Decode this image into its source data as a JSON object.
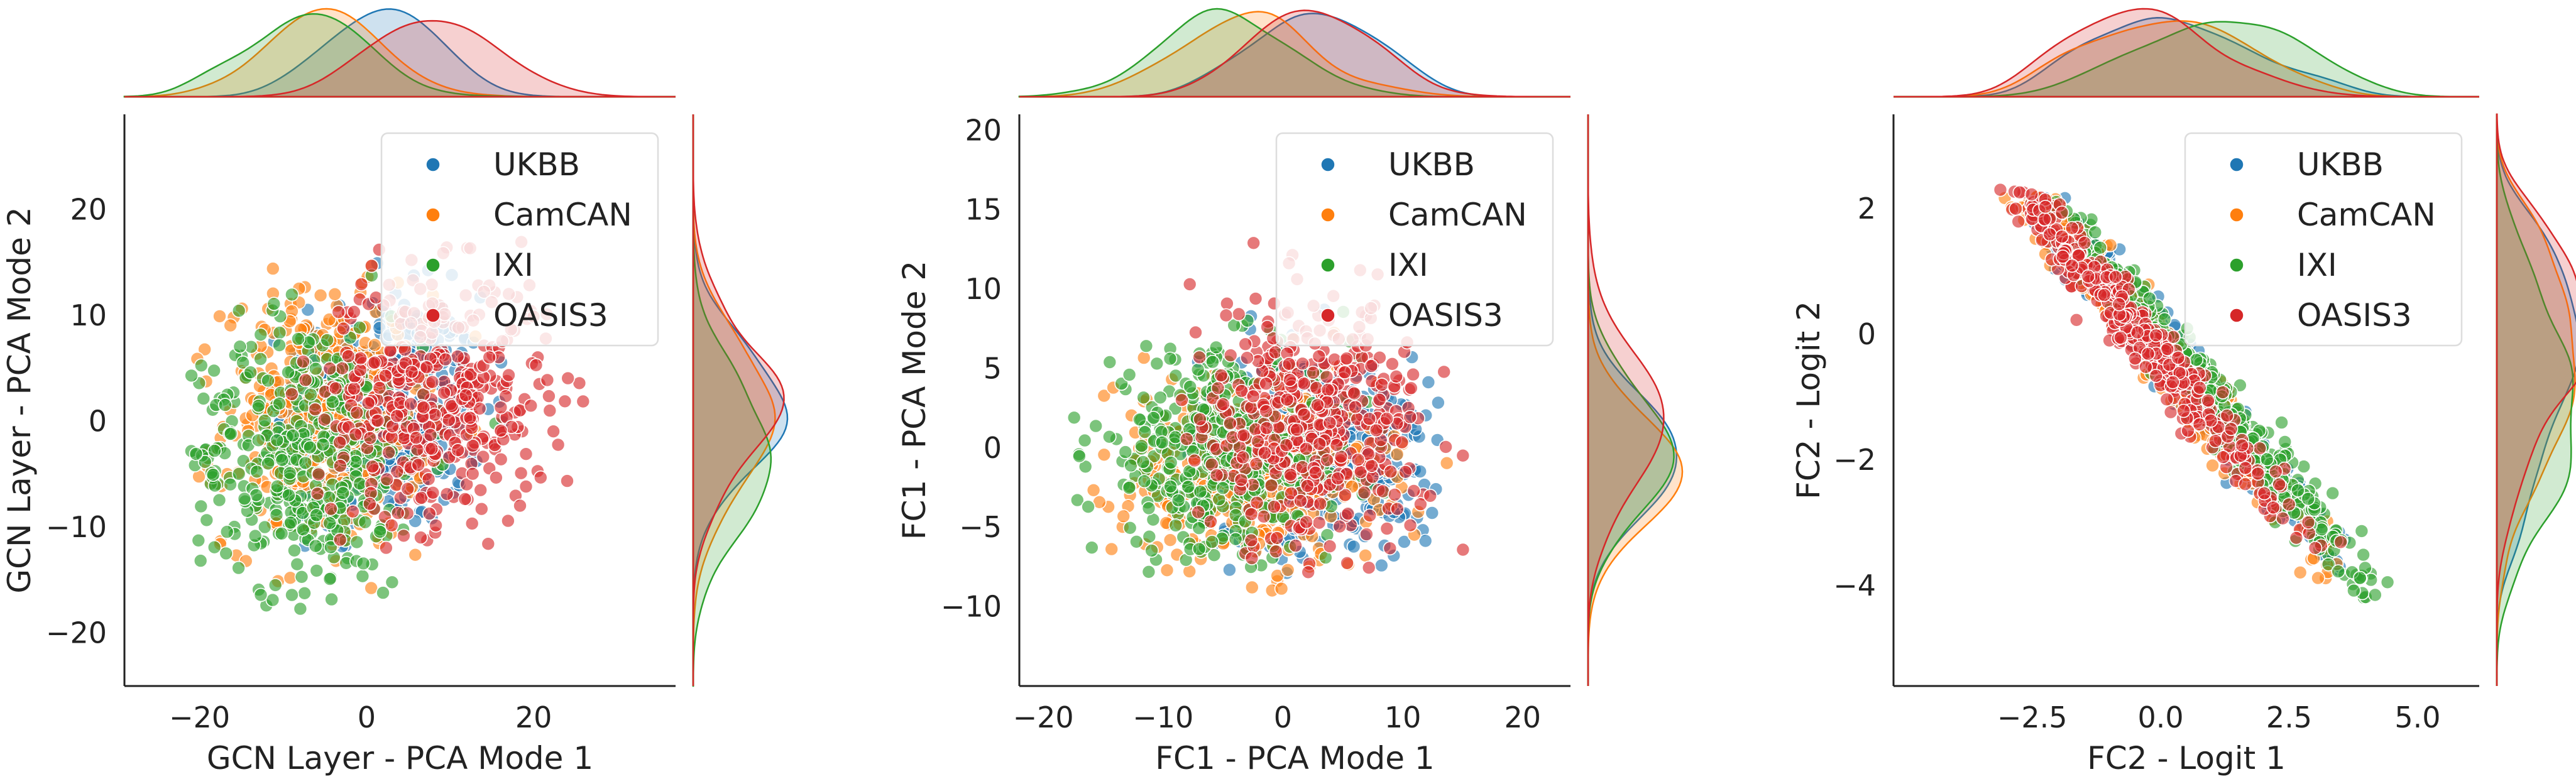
{
  "colors": {
    "UKBB": "#1f77b4",
    "CamCAN": "#ff7f0e",
    "IXI": "#2ca02c",
    "OASIS3": "#d62728",
    "axis": "#222222",
    "overlap_fill": "#8a7d5a"
  },
  "legend_entries": [
    "UKBB",
    "CamCAN",
    "IXI",
    "OASIS3"
  ],
  "chart_data": [
    {
      "type": "scatter",
      "subtype": "joint-plot with marginal KDE",
      "xlabel": "GCN Layer - PCA Mode 1",
      "ylabel": "GCN Layer - PCA Mode 2",
      "xlim": [
        -29,
        37
      ],
      "ylim": [
        -25,
        29
      ],
      "xticks": [
        -20,
        0,
        20
      ],
      "yticks": [
        -20,
        -10,
        0,
        10,
        20
      ],
      "legend": "upper right",
      "series": [
        {
          "name": "UKBB",
          "center": [
            2,
            1
          ],
          "spread": [
            6,
            5.5
          ],
          "corr": 0,
          "count": 420,
          "range": [
            [
              -12,
              18
            ],
            [
              -12,
              17
            ]
          ]
        },
        {
          "name": "CamCAN",
          "center": [
            -5,
            0
          ],
          "spread": [
            6,
            6
          ],
          "corr": 0,
          "count": 420,
          "range": [
            [
              -22,
              18
            ],
            [
              -16,
              17
            ]
          ]
        },
        {
          "name": "IXI",
          "center": [
            -7,
            -3
          ],
          "spread": [
            7,
            6.5
          ],
          "corr": 0,
          "count": 420,
          "range": [
            [
              -21,
              16
            ],
            [
              -18,
              14
            ]
          ]
        },
        {
          "name": "OASIS3",
          "center": [
            8,
            2
          ],
          "spread": [
            7,
            6
          ],
          "corr": 0,
          "count": 420,
          "range": [
            [
              -12,
              28
            ],
            [
              -12,
              17
            ]
          ]
        }
      ]
    },
    {
      "type": "scatter",
      "subtype": "joint-plot with marginal KDE",
      "xlabel": "FC1 - PCA Mode 1",
      "ylabel": "FC1 - PCA Mode 2",
      "xlim": [
        -22,
        24
      ],
      "ylim": [
        -15,
        21
      ],
      "xticks": [
        -20,
        -10,
        0,
        10,
        20
      ],
      "yticks": [
        -10,
        -5,
        0,
        5,
        10,
        15,
        20
      ],
      "legend": "upper right",
      "series": [
        {
          "name": "UKBB",
          "center": [
            3,
            -0.5
          ],
          "spread": [
            5,
            3.2
          ],
          "corr": 0,
          "count": 420,
          "range": [
            [
              -10,
              14
            ],
            [
              -8,
              9
            ]
          ]
        },
        {
          "name": "CamCAN",
          "center": [
            -3,
            -1.5
          ],
          "spread": [
            5.5,
            3
          ],
          "corr": 0,
          "count": 420,
          "range": [
            [
              -16,
              15
            ],
            [
              -9,
              12
            ]
          ]
        },
        {
          "name": "IXI",
          "center": [
            -5,
            -0.5
          ],
          "spread": [
            5.5,
            3.2
          ],
          "corr": 0,
          "count": 420,
          "range": [
            [
              -18,
              14
            ],
            [
              -9,
              9
            ]
          ]
        },
        {
          "name": "OASIS3",
          "center": [
            2,
            1.5
          ],
          "spread": [
            5,
            3.8
          ],
          "corr": 0,
          "count": 420,
          "range": [
            [
              -9,
              18
            ],
            [
              -8,
              17
            ]
          ]
        }
      ]
    },
    {
      "type": "scatter",
      "subtype": "joint-plot with marginal KDE",
      "xlabel": "FC2 - Logit 1",
      "ylabel": "FC2 - Logit 2",
      "xlim": [
        -5.2,
        6.2
      ],
      "ylim": [
        -5.6,
        3.5
      ],
      "xticks": [
        -2.5,
        0.0,
        2.5,
        5.0
      ],
      "xtick_labels": [
        "−2.5",
        "0.0",
        "2.5",
        "5.0"
      ],
      "yticks": [
        -4,
        -2,
        0,
        2
      ],
      "legend": "upper right",
      "series": [
        {
          "name": "UKBB",
          "center": [
            0.2,
            -0.4
          ],
          "spread": [
            1.6,
            0.28
          ],
          "slope": -0.98,
          "count": 420,
          "range": [
            [
              -3.6,
              4.0
            ],
            [
              -3.8,
              2.3
            ]
          ]
        },
        {
          "name": "CamCAN",
          "center": [
            0.0,
            -0.3
          ],
          "spread": [
            1.7,
            0.28
          ],
          "slope": -0.98,
          "count": 420,
          "range": [
            [
              -3.6,
              4.2
            ],
            [
              -3.9,
              2.3
            ]
          ]
        },
        {
          "name": "IXI",
          "center": [
            1.2,
            -1.2
          ],
          "spread": [
            1.6,
            0.28
          ],
          "slope": -0.98,
          "count": 420,
          "range": [
            [
              -3.4,
              4.6
            ],
            [
              -4.2,
              2.2
            ]
          ]
        },
        {
          "name": "OASIS3",
          "center": [
            -0.6,
            0.2
          ],
          "spread": [
            1.5,
            0.28
          ],
          "slope": -0.98,
          "count": 420,
          "range": [
            [
              -3.6,
              3.8
            ],
            [
              -3.6,
              2.3
            ]
          ]
        }
      ]
    }
  ]
}
